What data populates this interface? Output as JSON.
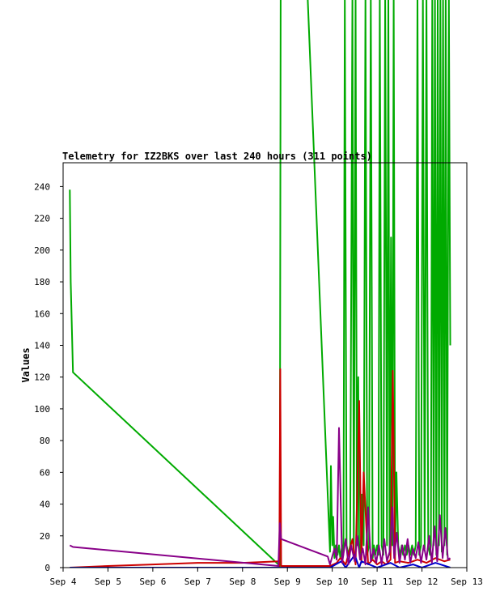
{
  "chart_data": {
    "type": "line",
    "title": "Telemetry for IZ2BKS over last 240 hours (311 points)",
    "ylabel": "Values",
    "xlabel": "",
    "ylim": [
      0,
      255
    ],
    "xlim": [
      4.0,
      13.0
    ],
    "yticks": [
      0,
      20,
      40,
      60,
      80,
      100,
      120,
      140,
      160,
      180,
      200,
      220,
      240
    ],
    "xticks": [
      {
        "value": 4,
        "label": "Sep 4"
      },
      {
        "value": 5,
        "label": "Sep 5"
      },
      {
        "value": 6,
        "label": "Sep 6"
      },
      {
        "value": 7,
        "label": "Sep 7"
      },
      {
        "value": 8,
        "label": "Sep 8"
      },
      {
        "value": 9,
        "label": "Sep 9"
      },
      {
        "value": 10,
        "label": "Sep 10"
      },
      {
        "value": 11,
        "label": "Sep 11"
      },
      {
        "value": 12,
        "label": "Sep 12"
      },
      {
        "value": 13,
        "label": "Sep 13"
      }
    ],
    "grid": false,
    "series": [
      {
        "color": "#00aa00",
        "x": [
          4.15,
          4.17,
          4.22,
          8.8,
          8.83,
          8.85,
          9.45,
          9.95,
          9.97,
          10.0,
          10.02,
          10.05,
          10.08,
          10.12,
          10.15,
          10.18,
          10.22,
          10.25,
          10.28,
          10.32,
          10.36,
          10.4,
          10.45,
          10.48,
          10.52,
          10.55,
          10.58,
          10.6,
          10.63,
          10.66,
          10.7,
          10.74,
          10.78,
          10.82,
          10.86,
          10.9,
          10.93,
          10.96,
          11.0,
          11.03,
          11.06,
          11.1,
          11.14,
          11.18,
          11.22,
          11.25,
          11.28,
          11.31,
          11.34,
          11.37,
          11.4,
          11.43,
          11.47,
          11.51,
          11.55,
          11.58,
          11.62,
          11.66,
          11.7,
          11.74,
          11.78,
          11.82,
          11.86,
          11.9,
          11.94,
          11.98,
          12.02,
          12.06,
          12.1,
          12.14,
          12.18,
          12.2,
          12.23,
          12.26,
          12.29,
          12.32,
          12.35,
          12.38,
          12.41,
          12.44,
          12.47,
          12.5,
          12.53,
          12.56,
          12.6,
          12.63
        ],
        "values": [
          238,
          180,
          123,
          2,
          0,
          360,
          360,
          10,
          64,
          14,
          32,
          6,
          14,
          8,
          14,
          6,
          14,
          8,
          360,
          14,
          8,
          14,
          360,
          10,
          360,
          14,
          120,
          14,
          8,
          46,
          14,
          360,
          8,
          14,
          360,
          6,
          14,
          8,
          14,
          8,
          360,
          14,
          8,
          360,
          14,
          360,
          8,
          208,
          14,
          360,
          8,
          60,
          14,
          8,
          14,
          8,
          14,
          8,
          14,
          8,
          14,
          8,
          14,
          360,
          8,
          14,
          360,
          12,
          360,
          14,
          8,
          14,
          360,
          14,
          360,
          8,
          360,
          14,
          360,
          10,
          360,
          14,
          360,
          8,
          360,
          140
        ]
      },
      {
        "color": "#cc0000",
        "x": [
          4.15,
          5.0,
          6.0,
          7.0,
          8.0,
          8.8,
          8.82,
          8.84,
          8.86,
          9.95,
          10.1,
          10.18,
          10.3,
          10.45,
          10.52,
          10.6,
          10.65,
          10.7,
          10.8,
          10.9,
          11.0,
          11.1,
          11.2,
          11.3,
          11.35,
          11.4,
          11.5,
          11.7,
          11.9,
          12.1,
          12.3,
          12.5,
          12.63
        ],
        "values": [
          0,
          1,
          2,
          3,
          3,
          4,
          1,
          125,
          1,
          1,
          3,
          6,
          2,
          18,
          2,
          105,
          3,
          60,
          2,
          5,
          2,
          4,
          2,
          5,
          124,
          3,
          4,
          3,
          5,
          3,
          6,
          4,
          5
        ]
      },
      {
        "color": "#0000cc",
        "x": [
          4.15,
          6.0,
          8.0,
          8.8,
          9.95,
          10.2,
          10.3,
          10.5,
          10.6,
          10.65,
          11.0,
          11.3,
          11.5,
          11.8,
          12.0,
          12.3,
          12.63
        ],
        "values": [
          0,
          0,
          0,
          0,
          0,
          4,
          0,
          8,
          0,
          4,
          0,
          3,
          0,
          2,
          0,
          3,
          0
        ]
      },
      {
        "color": "#880088",
        "x": [
          4.15,
          4.22,
          8.8,
          8.83,
          8.86,
          9.9,
          9.95,
          10.05,
          10.1,
          10.15,
          10.22,
          10.3,
          10.36,
          10.42,
          10.5,
          10.56,
          10.62,
          10.68,
          10.74,
          10.8,
          10.86,
          10.92,
          10.98,
          11.04,
          11.1,
          11.16,
          11.22,
          11.28,
          11.34,
          11.38,
          11.44,
          11.5,
          11.56,
          11.62,
          11.68,
          11.74,
          11.8,
          11.86,
          11.92,
          11.98,
          12.04,
          12.1,
          12.16,
          12.22,
          12.28,
          12.34,
          12.4,
          12.46,
          12.52,
          12.58,
          12.63
        ],
        "values": [
          14,
          13,
          1,
          28,
          18,
          7,
          2,
          12,
          5,
          88,
          3,
          18,
          2,
          14,
          4,
          20,
          5,
          12,
          2,
          38,
          4,
          12,
          3,
          14,
          2,
          18,
          4,
          10,
          38,
          6,
          22,
          3,
          14,
          5,
          18,
          3,
          12,
          6,
          16,
          3,
          14,
          5,
          20,
          3,
          26,
          4,
          33,
          6,
          25,
          5,
          6
        ]
      }
    ]
  }
}
